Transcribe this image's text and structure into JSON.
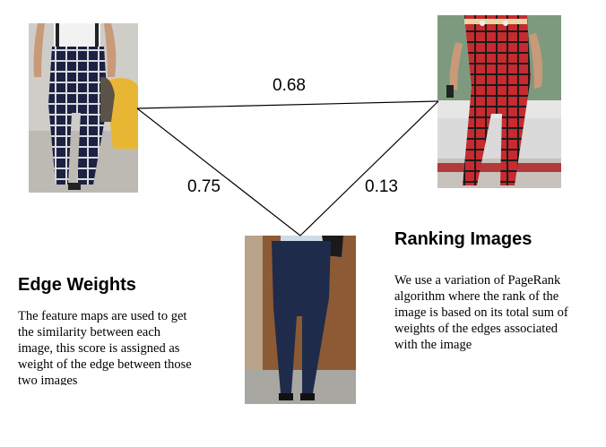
{
  "weights": {
    "top": "0.68",
    "left": "0.75",
    "right": "0.13"
  },
  "edge_weights": {
    "title": "Edge Weights",
    "text": "The feature maps are used to get the similarity between each image, this score is assigned as weight of the edge between those two images"
  },
  "ranking": {
    "title": "Ranking Images",
    "text": "We use a variation of PageRank algorithm where the rank of the image is based on its total sum of weights of the edges associated with the image"
  }
}
